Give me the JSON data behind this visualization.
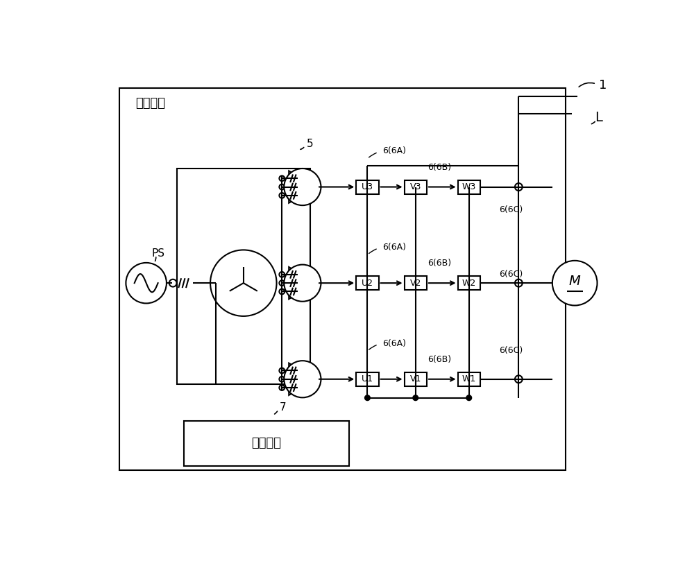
{
  "bg_color": "#ffffff",
  "line_color": "#000000",
  "drive_box_label": "驱动装置",
  "control_box_label": "控制装置",
  "label_1": "1",
  "label_5": "5",
  "label_7": "7",
  "label_L": "L",
  "label_PS": "PS",
  "label_M": "M",
  "boxes_U": [
    "U3",
    "U2",
    "U1"
  ],
  "boxes_V": [
    "V3",
    "V2",
    "V1"
  ],
  "boxes_W": [
    "W3",
    "W2",
    "W1"
  ],
  "label_6A": "6(6A)",
  "label_6B": "6(6B)",
  "label_6C": "6(6C)",
  "figsize": [
    10.0,
    8.09
  ],
  "dpi": 100,
  "xlim": [
    0,
    10
  ],
  "ylim": [
    0,
    8.09
  ]
}
